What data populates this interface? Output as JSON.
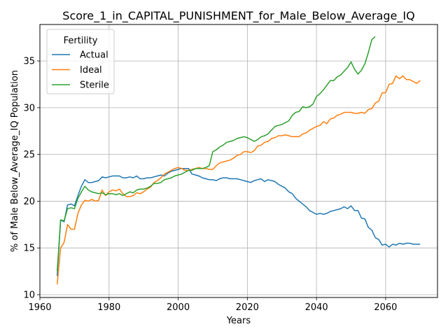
{
  "chart_data": {
    "type": "line",
    "title": "Score_1_in_CAPITAL_PUNISHMENT_for_Male_Below_Average_IQ",
    "xlabel": "Years",
    "ylabel": "% of Male Below_Average_IQ Population",
    "xlim": [
      1960,
      2075
    ],
    "ylim": [
      9.7,
      38.9
    ],
    "xticks": [
      1960,
      1980,
      2000,
      2020,
      2040,
      2060
    ],
    "yticks": [
      10,
      15,
      20,
      25,
      30,
      35
    ],
    "grid": true,
    "legend": {
      "title": "Fertility",
      "placement": "top-left"
    },
    "series": [
      {
        "name": "Actual",
        "color": "#1f77b4",
        "x": [
          1965,
          1966,
          1967,
          1968,
          1969,
          1970,
          1971,
          1972,
          1973,
          1974,
          1975,
          1976,
          1977,
          1978,
          1979,
          1980,
          1981,
          1982,
          1983,
          1984,
          1985,
          1986,
          1987,
          1988,
          1989,
          1990,
          1991,
          1992,
          1993,
          1994,
          1995,
          1996,
          1997,
          1998,
          1999,
          2000,
          2001,
          2002,
          2003,
          2004,
          2005,
          2006,
          2007,
          2008,
          2009,
          2010,
          2011,
          2012,
          2013,
          2014,
          2015,
          2016,
          2017,
          2018,
          2019,
          2020,
          2021,
          2022,
          2023,
          2024,
          2025,
          2026,
          2027,
          2028,
          2029,
          2030,
          2031,
          2032,
          2033,
          2034,
          2035,
          2036,
          2037,
          2038,
          2039,
          2040,
          2041,
          2042,
          2043,
          2044,
          2045,
          2046,
          2047,
          2048,
          2049,
          2050,
          2051,
          2052,
          2053,
          2054,
          2055,
          2056,
          2057,
          2058,
          2059,
          2060,
          2061,
          2062,
          2063,
          2064,
          2065,
          2066,
          2067,
          2068,
          2069,
          2070
        ],
        "y": [
          12.0,
          18.0,
          17.8,
          19.6,
          19.7,
          19.5,
          20.6,
          21.6,
          22.3,
          22.0,
          22.0,
          22.1,
          22.2,
          22.6,
          22.5,
          22.6,
          22.7,
          22.7,
          22.7,
          22.5,
          22.5,
          22.6,
          22.5,
          22.7,
          22.4,
          22.4,
          22.5,
          22.5,
          22.6,
          22.7,
          22.8,
          22.7,
          23.0,
          23.2,
          23.3,
          23.4,
          23.5,
          23.5,
          23.5,
          22.9,
          22.8,
          22.7,
          22.5,
          22.4,
          22.3,
          22.3,
          22.2,
          22.4,
          22.5,
          22.5,
          22.4,
          22.4,
          22.4,
          22.3,
          22.2,
          22.1,
          22.0,
          22.2,
          22.3,
          22.4,
          22.1,
          22.3,
          22.2,
          22.1,
          21.8,
          21.6,
          21.4,
          21.0,
          20.8,
          20.3,
          20.0,
          19.7,
          19.4,
          19.0,
          18.8,
          18.6,
          18.7,
          18.6,
          18.7,
          18.9,
          19.0,
          19.1,
          19.2,
          19.4,
          19.2,
          19.5,
          19.0,
          19.0,
          18.2,
          18.1,
          17.2,
          16.9,
          16.1,
          15.9,
          15.3,
          15.4,
          15.1,
          15.4,
          15.3,
          15.5,
          15.4,
          15.5,
          15.5,
          15.4,
          15.4,
          15.4
        ]
      },
      {
        "name": "Ideal",
        "color": "#ff7f0e",
        "x": [
          1965,
          1966,
          1967,
          1968,
          1969,
          1970,
          1971,
          1972,
          1973,
          1974,
          1975,
          1976,
          1977,
          1978,
          1979,
          1980,
          1981,
          1982,
          1983,
          1984,
          1985,
          1986,
          1987,
          1988,
          1989,
          1990,
          1991,
          1992,
          1993,
          1994,
          1995,
          1996,
          1997,
          1998,
          1999,
          2000,
          2001,
          2002,
          2003,
          2004,
          2005,
          2006,
          2007,
          2008,
          2009,
          2010,
          2011,
          2012,
          2013,
          2014,
          2015,
          2016,
          2017,
          2018,
          2019,
          2020,
          2021,
          2022,
          2023,
          2024,
          2025,
          2026,
          2027,
          2028,
          2029,
          2030,
          2031,
          2032,
          2033,
          2034,
          2035,
          2036,
          2037,
          2038,
          2039,
          2040,
          2041,
          2042,
          2043,
          2044,
          2045,
          2046,
          2047,
          2048,
          2049,
          2050,
          2051,
          2052,
          2053,
          2054,
          2055,
          2056,
          2057,
          2058,
          2059,
          2060,
          2061,
          2062,
          2063,
          2064,
          2065,
          2066,
          2067,
          2068,
          2069,
          2070
        ],
        "y": [
          11.1,
          15.0,
          15.6,
          17.5,
          17.0,
          17.0,
          18.7,
          19.6,
          20.1,
          20.0,
          20.2,
          20.0,
          20.1,
          21.2,
          20.6,
          21.0,
          21.2,
          21.1,
          21.3,
          20.8,
          20.5,
          20.5,
          20.6,
          20.9,
          20.8,
          21.0,
          21.3,
          21.5,
          22.0,
          22.2,
          22.5,
          22.9,
          23.1,
          23.3,
          23.5,
          23.6,
          23.5,
          23.3,
          23.3,
          23.4,
          23.5,
          23.6,
          23.5,
          23.5,
          23.4,
          23.4,
          23.8,
          24.1,
          24.2,
          24.3,
          24.4,
          24.6,
          24.9,
          25.0,
          25.3,
          25.3,
          25.2,
          25.4,
          25.9,
          26.0,
          26.3,
          26.4,
          26.7,
          26.8,
          27.0,
          27.0,
          27.1,
          27.0,
          26.9,
          26.9,
          26.9,
          27.2,
          27.3,
          27.6,
          27.8,
          28.0,
          28.1,
          28.5,
          28.3,
          28.8,
          28.9,
          29.2,
          29.3,
          29.5,
          29.5,
          29.5,
          29.4,
          29.4,
          29.5,
          29.4,
          29.8,
          29.9,
          30.5,
          30.7,
          31.6,
          31.6,
          32.5,
          32.6,
          33.4,
          33.1,
          33.4,
          33.0,
          33.0,
          32.8,
          32.6,
          32.9
        ]
      },
      {
        "name": "Sterile",
        "color": "#2ca02c",
        "x": [
          1965,
          1966,
          1967,
          1968,
          1969,
          1970,
          1971,
          1972,
          1973,
          1974,
          1975,
          1976,
          1977,
          1978,
          1979,
          1980,
          1981,
          1982,
          1983,
          1984,
          1985,
          1986,
          1987,
          1988,
          1989,
          1990,
          1991,
          1992,
          1993,
          1994,
          1995,
          1996,
          1997,
          1998,
          1999,
          2000,
          2001,
          2002,
          2003,
          2004,
          2005,
          2006,
          2007,
          2008,
          2009,
          2010,
          2011,
          2012,
          2013,
          2014,
          2015,
          2016,
          2017,
          2018,
          2019,
          2020,
          2021,
          2022,
          2023,
          2024,
          2025,
          2026,
          2027,
          2028,
          2029,
          2030,
          2031,
          2032,
          2033,
          2034,
          2035,
          2036,
          2037,
          2038,
          2039,
          2040,
          2041,
          2042,
          2043,
          2044,
          2045,
          2046,
          2047,
          2048,
          2049,
          2050,
          2051,
          2052,
          2053,
          2054,
          2055,
          2056,
          2057
        ],
        "y": [
          12.5,
          18.0,
          17.9,
          19.2,
          19.3,
          19.2,
          20.3,
          21.0,
          21.6,
          21.2,
          21.0,
          20.9,
          20.8,
          20.9,
          20.7,
          20.8,
          20.8,
          20.7,
          20.8,
          20.6,
          20.8,
          21.0,
          20.9,
          21.2,
          21.3,
          21.3,
          21.4,
          21.6,
          21.9,
          21.9,
          22.0,
          22.3,
          22.4,
          22.5,
          22.7,
          22.8,
          22.9,
          23.1,
          23.3,
          23.3,
          23.5,
          23.5,
          23.5,
          23.6,
          23.8,
          25.3,
          25.5,
          25.8,
          26.0,
          26.3,
          26.4,
          26.5,
          26.7,
          26.8,
          26.9,
          26.8,
          26.6,
          26.4,
          26.6,
          26.9,
          27.0,
          27.2,
          27.6,
          28.0,
          28.1,
          28.2,
          28.4,
          28.6,
          29.2,
          29.5,
          29.6,
          30.1,
          30.0,
          30.1,
          30.4,
          31.2,
          31.5,
          31.9,
          32.4,
          32.9,
          32.9,
          33.3,
          33.5,
          33.9,
          34.3,
          34.9,
          34.1,
          33.6,
          34.0,
          34.7,
          35.9,
          37.3,
          37.6
        ]
      }
    ]
  }
}
